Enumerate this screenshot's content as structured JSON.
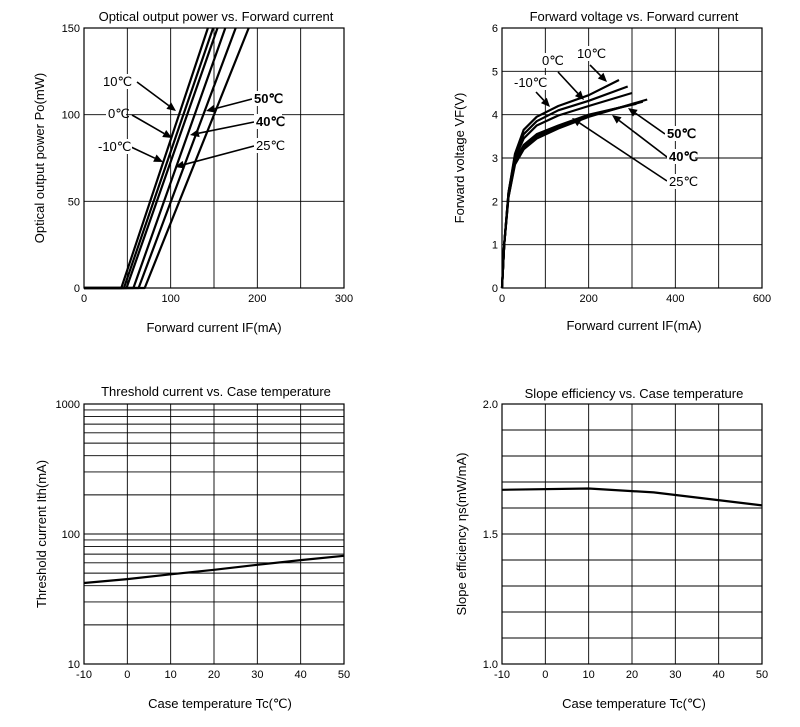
{
  "chart_data": [
    {
      "type": "line",
      "title": "Optical output power vs. Forward current",
      "xlabel": "Forward current IF(mA)",
      "ylabel": "Optical output power Po(mW)",
      "xlim": [
        0,
        300
      ],
      "ylim": [
        0,
        150
      ],
      "xticks": [
        0,
        100,
        200,
        300
      ],
      "yticks": [
        0,
        50,
        100,
        150
      ],
      "grid": true,
      "series": [
        {
          "name": "-10℃",
          "points": [
            [
              0,
              0
            ],
            [
              43,
              0
            ],
            [
              143,
              150
            ]
          ]
        },
        {
          "name": "0℃",
          "points": [
            [
              0,
              0
            ],
            [
              46,
              0
            ],
            [
              149,
              150
            ]
          ]
        },
        {
          "name": "10℃",
          "points": [
            [
              0,
              0
            ],
            [
              49,
              0
            ],
            [
              154,
              150
            ]
          ]
        },
        {
          "name": "25℃",
          "points": [
            [
              0,
              0
            ],
            [
              57,
              0
            ],
            [
              163,
              150
            ]
          ]
        },
        {
          "name": "40℃",
          "points": [
            [
              0,
              0
            ],
            [
              63,
              0
            ],
            [
              175,
              150
            ]
          ]
        },
        {
          "name": "50℃",
          "points": [
            [
              0,
              0
            ],
            [
              70,
              0
            ],
            [
              190,
              150
            ]
          ]
        }
      ],
      "annotations": [
        {
          "text": "10℃",
          "bold": false
        },
        {
          "text": "0℃",
          "bold": false
        },
        {
          "text": "-10℃",
          "bold": false
        },
        {
          "text": "50℃",
          "bold": true
        },
        {
          "text": "40℃",
          "bold": true
        },
        {
          "text": "25℃",
          "bold": false
        }
      ]
    },
    {
      "type": "line",
      "title": "Forward voltage vs. Forward current",
      "xlabel": "Forward current IF(mA)",
      "ylabel": "Forward voltage VF(V)",
      "xlim": [
        0,
        600
      ],
      "ylim": [
        0,
        6
      ],
      "xticks": [
        0,
        200,
        400,
        600
      ],
      "yticks": [
        0,
        1,
        2,
        3,
        4,
        5,
        6
      ],
      "grid": true,
      "series": [
        {
          "name": "-10℃",
          "points": [
            [
              0,
              0
            ],
            [
              5,
              1
            ],
            [
              15,
              2.2
            ],
            [
              30,
              3.1
            ],
            [
              50,
              3.65
            ],
            [
              80,
              3.95
            ],
            [
              130,
              4.2
            ],
            [
              200,
              4.45
            ],
            [
              270,
              4.8
            ]
          ]
        },
        {
          "name": "0℃",
          "points": [
            [
              0,
              0
            ],
            [
              5,
              1
            ],
            [
              15,
              2.2
            ],
            [
              30,
              3.05
            ],
            [
              50,
              3.55
            ],
            [
              80,
              3.85
            ],
            [
              130,
              4.1
            ],
            [
              200,
              4.32
            ],
            [
              290,
              4.65
            ]
          ]
        },
        {
          "name": "10℃",
          "points": [
            [
              0,
              0
            ],
            [
              5,
              1
            ],
            [
              15,
              2.2
            ],
            [
              30,
              3.0
            ],
            [
              50,
              3.45
            ],
            [
              80,
              3.75
            ],
            [
              130,
              3.98
            ],
            [
              200,
              4.2
            ],
            [
              300,
              4.5
            ]
          ]
        },
        {
          "name": "25℃",
          "points": [
            [
              0,
              0
            ],
            [
              5,
              1
            ],
            [
              15,
              2.15
            ],
            [
              30,
              2.95
            ],
            [
              50,
              3.3
            ],
            [
              80,
              3.55
            ],
            [
              130,
              3.75
            ],
            [
              200,
              4.0
            ],
            [
              310,
              4.25
            ]
          ]
        },
        {
          "name": "40℃",
          "points": [
            [
              0,
              0
            ],
            [
              5,
              1
            ],
            [
              15,
              2.1
            ],
            [
              30,
              2.9
            ],
            [
              50,
              3.25
            ],
            [
              80,
              3.5
            ],
            [
              130,
              3.72
            ],
            [
              200,
              3.98
            ],
            [
              325,
              4.3
            ]
          ]
        },
        {
          "name": "50℃",
          "points": [
            [
              0,
              0
            ],
            [
              5,
              1
            ],
            [
              15,
              2.1
            ],
            [
              30,
              2.85
            ],
            [
              50,
              3.2
            ],
            [
              80,
              3.45
            ],
            [
              130,
              3.68
            ],
            [
              200,
              3.95
            ],
            [
              335,
              4.35
            ]
          ]
        }
      ],
      "annotations": [
        {
          "text": "0℃",
          "bold": false
        },
        {
          "text": "10℃",
          "bold": false
        },
        {
          "text": "-10℃",
          "bold": false
        },
        {
          "text": "50℃",
          "bold": true
        },
        {
          "text": "40℃",
          "bold": true
        },
        {
          "text": "25℃",
          "bold": false
        }
      ]
    },
    {
      "type": "line",
      "title": "Threshold current vs. Case temperature",
      "xlabel": "Case temperature Tc(℃)",
      "ylabel": "Threshold current Ith(mA)",
      "xlim": [
        -10,
        50
      ],
      "ylim": [
        10,
        1000
      ],
      "yscale": "log",
      "xticks": [
        -10,
        0,
        10,
        20,
        30,
        40,
        50
      ],
      "yticks": [
        10,
        100,
        1000
      ],
      "grid": true,
      "series": [
        {
          "name": "",
          "points": [
            [
              -10,
              42
            ],
            [
              0,
              45
            ],
            [
              10,
              49
            ],
            [
              20,
              53
            ],
            [
              30,
              58
            ],
            [
              40,
              63
            ],
            [
              50,
              68
            ]
          ]
        }
      ]
    },
    {
      "type": "line",
      "title": "Slope efficiency vs. Case temperature",
      "xlabel": "Case temperature Tc(℃)",
      "ylabel": "Slope efficiency ηs(mW/mA)",
      "xlim": [
        -10,
        50
      ],
      "ylim": [
        1.0,
        2.0
      ],
      "xticks": [
        -10,
        0,
        10,
        20,
        30,
        40,
        50
      ],
      "yticks": [
        1.0,
        1.5,
        2.0
      ],
      "grid": true,
      "series": [
        {
          "name": "",
          "points": [
            [
              -10,
              1.67
            ],
            [
              10,
              1.675
            ],
            [
              25,
              1.66
            ],
            [
              50,
              1.61
            ]
          ]
        }
      ]
    }
  ]
}
